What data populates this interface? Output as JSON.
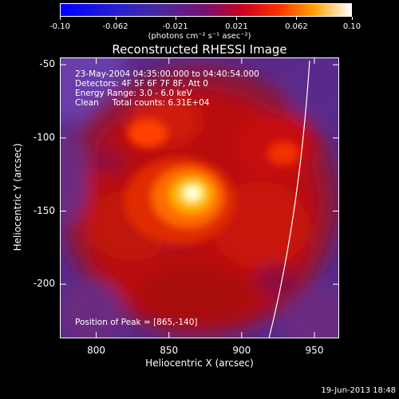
{
  "chart_data": {
    "type": "heatmap",
    "title": "Reconstructed RHESSI Image",
    "xlabel": "Heliocentric X (arcsec)",
    "ylabel": "Heliocentric Y (arcsec)",
    "xlim": [
      775,
      967
    ],
    "ylim": [
      -237,
      -45
    ],
    "xticks": [
      "800",
      "850",
      "900",
      "950"
    ],
    "xtick_values": [
      800,
      850,
      900,
      950
    ],
    "yticks": [
      "-50",
      "-100",
      "-150",
      "-200"
    ],
    "ytick_values": [
      -50,
      -100,
      -150,
      -200
    ],
    "colorbar": {
      "ticks": [
        "-0.10",
        "-0.062",
        "-0.021",
        "0.021",
        "0.062",
        "0.10"
      ],
      "tick_values": [
        -0.1,
        -0.062,
        -0.021,
        0.021,
        0.062,
        0.1
      ],
      "range": [
        -0.1,
        0.1
      ],
      "units_label": "(photons cm⁻² s⁻¹ asec⁻²)"
    },
    "annotations": {
      "time": "23-May-2004 04:35:00.000 to 04:40:54.000",
      "detectors": "Detectors: 4F 5F 6F 7F 8F, Att 0",
      "energy": "Energy Range: 3.0 - 6.0 keV",
      "clean": "Clean     Total counts: 6.31E+04",
      "peak": "Position of Peak = [865,-140]"
    },
    "peak": {
      "x": 865,
      "y": -140
    }
  },
  "footer": {
    "timestamp": "19-Jun-2013 18:48"
  }
}
